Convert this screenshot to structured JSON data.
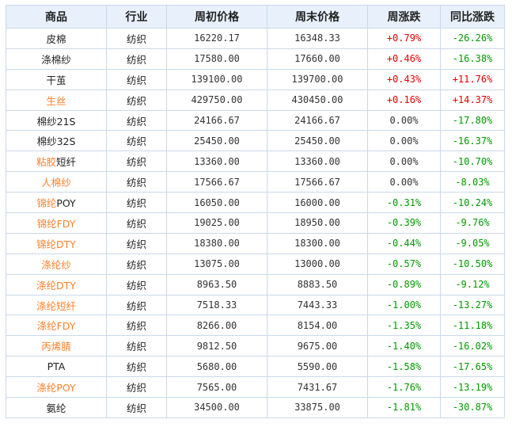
{
  "colors": {
    "header_bg": "#e7f0fb",
    "border": "#c9d9ea",
    "up": "#e60000",
    "down": "#009900",
    "link_orange": "#ff7f27"
  },
  "table": {
    "headers": [
      "商品",
      "行业",
      "周初价格",
      "周末价格",
      "周涨跌",
      "同比涨跌"
    ],
    "rows": [
      {
        "name": "皮棉",
        "highlight": false,
        "industry": "纺织",
        "start": "16220.17",
        "end": "16348.33",
        "week": "+0.79%",
        "yoy": "-26.26%"
      },
      {
        "name": "涤棉纱",
        "highlight": false,
        "industry": "纺织",
        "start": "17580.00",
        "end": "17660.00",
        "week": "+0.46%",
        "yoy": "-16.38%"
      },
      {
        "name": "干茧",
        "highlight": false,
        "industry": "纺织",
        "start": "139100.00",
        "end": "139700.00",
        "week": "+0.43%",
        "yoy": "+11.76%"
      },
      {
        "name": "生丝",
        "highlight": true,
        "industry": "纺织",
        "start": "429750.00",
        "end": "430450.00",
        "week": "+0.16%",
        "yoy": "+14.37%"
      },
      {
        "name": "棉纱21S",
        "highlight": false,
        "industry": "纺织",
        "start": "24166.67",
        "end": "24166.67",
        "week": "0.00%",
        "yoy": "-17.80%"
      },
      {
        "name": "棉纱32S",
        "highlight": false,
        "industry": "纺织",
        "start": "25450.00",
        "end": "25450.00",
        "week": "0.00%",
        "yoy": "-16.37%"
      },
      {
        "name_a": "粘胶",
        "name_b": "短纤",
        "split": true,
        "industry": "纺织",
        "start": "13360.00",
        "end": "13360.00",
        "week": "0.00%",
        "yoy": "-10.70%"
      },
      {
        "name": "人棉纱",
        "highlight": true,
        "industry": "纺织",
        "start": "17566.67",
        "end": "17566.67",
        "week": "0.00%",
        "yoy": "-8.03%"
      },
      {
        "name_a": "锦纶",
        "name_b": "POY",
        "split": true,
        "industry": "纺织",
        "start": "16050.00",
        "end": "16000.00",
        "week": "-0.31%",
        "yoy": "-10.24%"
      },
      {
        "name": "锦纶FDY",
        "highlight": true,
        "industry": "纺织",
        "start": "19025.00",
        "end": "18950.00",
        "week": "-0.39%",
        "yoy": "-9.76%"
      },
      {
        "name": "锦纶DTY",
        "highlight": true,
        "industry": "纺织",
        "start": "18380.00",
        "end": "18300.00",
        "week": "-0.44%",
        "yoy": "-9.05%"
      },
      {
        "name": "涤纶纱",
        "highlight": true,
        "industry": "纺织",
        "start": "13075.00",
        "end": "13000.00",
        "week": "-0.57%",
        "yoy": "-10.50%"
      },
      {
        "name": "涤纶DTY",
        "highlight": true,
        "industry": "纺织",
        "start": "8963.50",
        "end": "8883.50",
        "week": "-0.89%",
        "yoy": "-9.12%"
      },
      {
        "name": "涤纶短纤",
        "highlight": true,
        "industry": "纺织",
        "start": "7518.33",
        "end": "7443.33",
        "week": "-1.00%",
        "yoy": "-13.27%"
      },
      {
        "name": "涤纶FDY",
        "highlight": true,
        "industry": "纺织",
        "start": "8266.00",
        "end": "8154.00",
        "week": "-1.35%",
        "yoy": "-11.18%"
      },
      {
        "name": "丙烯腈",
        "highlight": true,
        "industry": "纺织",
        "start": "9812.50",
        "end": "9675.00",
        "week": "-1.40%",
        "yoy": "-16.02%"
      },
      {
        "name": "PTA",
        "highlight": false,
        "industry": "纺织",
        "start": "5680.00",
        "end": "5590.00",
        "week": "-1.58%",
        "yoy": "-17.65%"
      },
      {
        "name": "涤纶POY",
        "highlight": true,
        "industry": "纺织",
        "start": "7565.00",
        "end": "7431.67",
        "week": "-1.76%",
        "yoy": "-13.19%"
      },
      {
        "name": "氨纶",
        "highlight": false,
        "industry": "纺织",
        "start": "34500.00",
        "end": "33875.00",
        "week": "-1.81%",
        "yoy": "-30.87%"
      }
    ]
  }
}
